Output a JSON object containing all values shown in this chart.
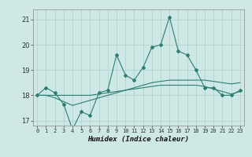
{
  "title": "",
  "xlabel": "Humidex (Indice chaleur)",
  "background_color": "#cde8e5",
  "grid_color": "#b0d4d0",
  "line_color": "#2e7d72",
  "ylim": [
    16.8,
    21.4
  ],
  "xlim": [
    -0.5,
    23.5
  ],
  "yticks": [
    17,
    18,
    19,
    20,
    21
  ],
  "xticks": [
    0,
    1,
    2,
    3,
    4,
    5,
    6,
    7,
    8,
    9,
    10,
    11,
    12,
    13,
    14,
    15,
    16,
    17,
    18,
    19,
    20,
    21,
    22,
    23
  ],
  "series1": [
    18.0,
    18.3,
    18.1,
    17.65,
    16.65,
    17.35,
    17.2,
    18.1,
    18.2,
    19.6,
    18.8,
    18.6,
    19.1,
    19.9,
    20.0,
    21.1,
    19.75,
    19.6,
    19.0,
    18.3,
    18.3,
    18.0,
    18.0,
    18.2
  ],
  "series2": [
    18.0,
    18.0,
    18.0,
    18.0,
    18.0,
    18.0,
    18.0,
    18.05,
    18.1,
    18.15,
    18.2,
    18.25,
    18.3,
    18.35,
    18.4,
    18.4,
    18.4,
    18.4,
    18.4,
    18.35,
    18.25,
    18.15,
    18.05,
    18.15
  ],
  "series3": [
    18.0,
    18.0,
    17.9,
    17.75,
    17.6,
    17.7,
    17.8,
    17.9,
    18.0,
    18.1,
    18.2,
    18.3,
    18.4,
    18.5,
    18.55,
    18.6,
    18.6,
    18.6,
    18.6,
    18.6,
    18.55,
    18.5,
    18.45,
    18.5
  ],
  "figsize": [
    3.2,
    2.0
  ],
  "dpi": 100
}
